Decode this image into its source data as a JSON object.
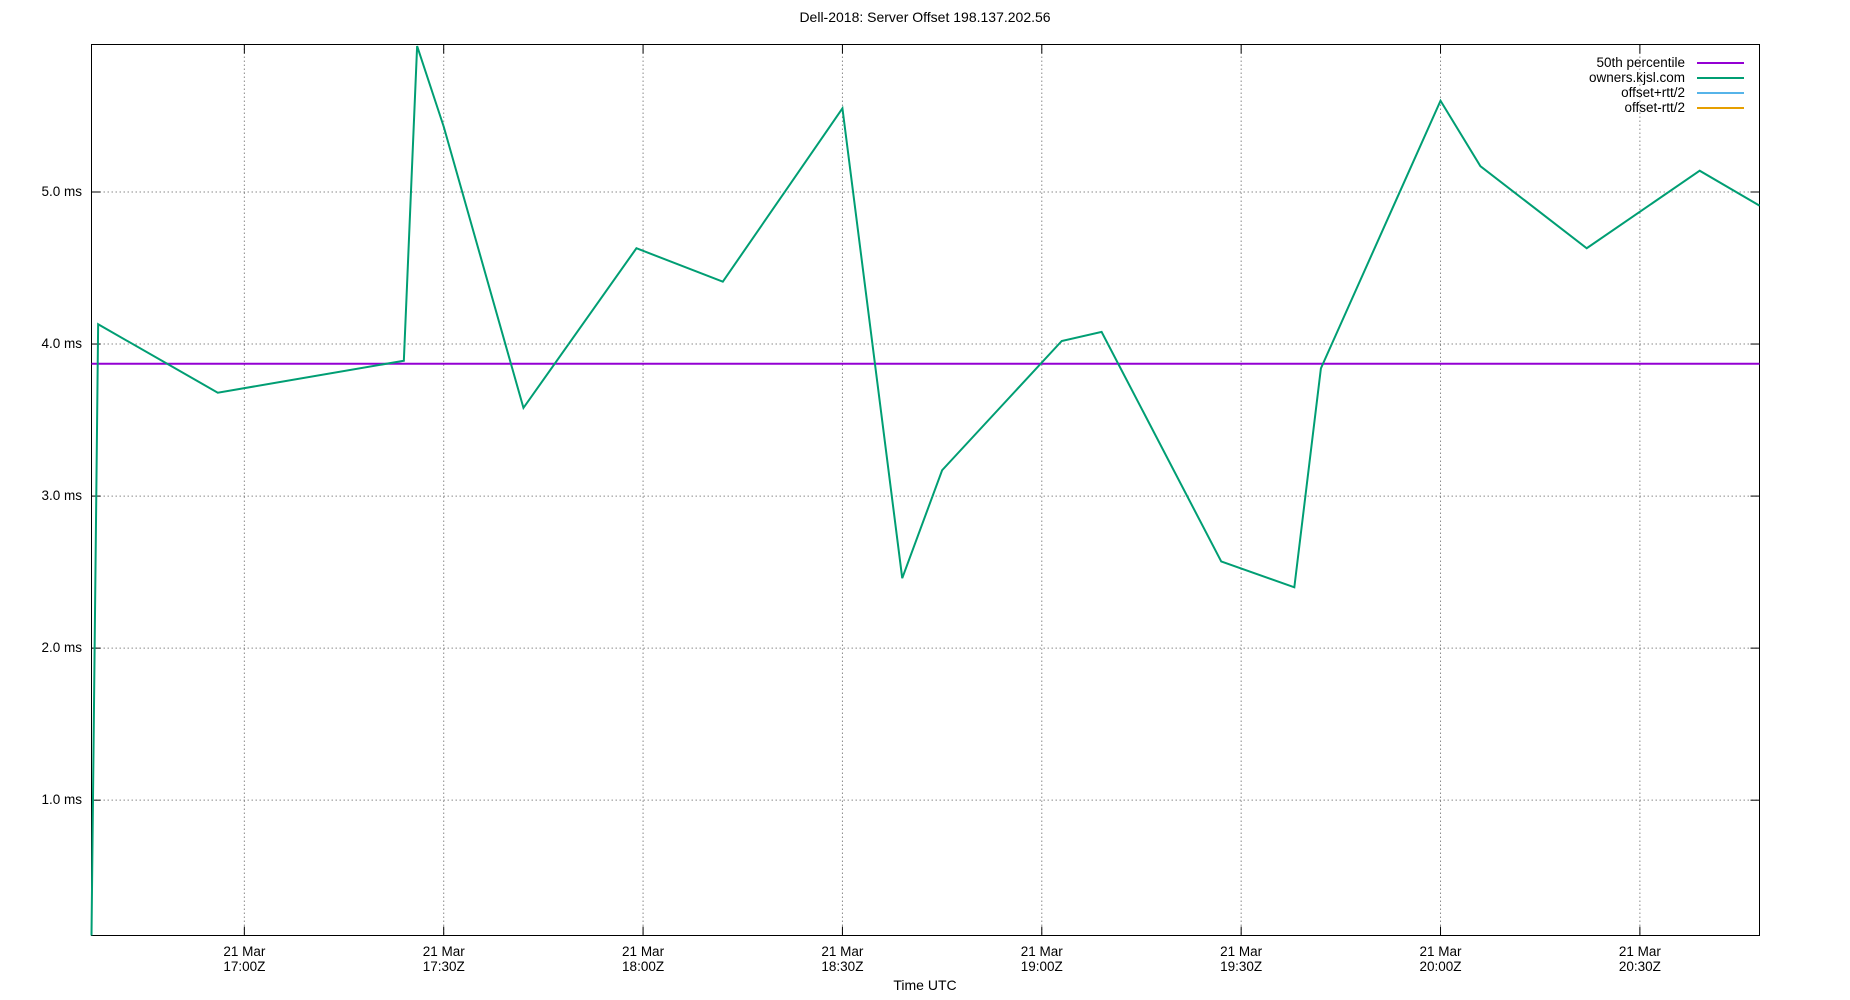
{
  "chart_data": {
    "type": "line",
    "title": "Dell-2018: Server Offset 198.137.202.56",
    "xlabel": "Time UTC",
    "y_unit": "ms",
    "ylim": [
      0.11,
      5.97
    ],
    "x_range": [
      "16:37",
      "20:48"
    ],
    "grid": true,
    "legend_position": "inside top right",
    "y_ticks": [
      {
        "v": 5.0,
        "label": "5.0 ms"
      },
      {
        "v": 4.0,
        "label": "4.0 ms"
      },
      {
        "v": 3.0,
        "label": "3.0 ms"
      },
      {
        "v": 2.0,
        "label": "2.0 ms"
      },
      {
        "v": 1.0,
        "label": "1.0 ms"
      }
    ],
    "x_ticks": [
      {
        "t": "17:00",
        "l1": "21 Mar",
        "l2": "17:00Z"
      },
      {
        "t": "17:30",
        "l1": "21 Mar",
        "l2": "17:30Z"
      },
      {
        "t": "18:00",
        "l1": "21 Mar",
        "l2": "18:00Z"
      },
      {
        "t": "18:30",
        "l1": "21 Mar",
        "l2": "18:30Z"
      },
      {
        "t": "19:00",
        "l1": "21 Mar",
        "l2": "19:00Z"
      },
      {
        "t": "19:30",
        "l1": "21 Mar",
        "l2": "19:30Z"
      },
      {
        "t": "20:00",
        "l1": "21 Mar",
        "l2": "20:00Z"
      },
      {
        "t": "20:30",
        "l1": "21 Mar",
        "l2": "20:30Z"
      }
    ],
    "series": [
      {
        "name": "50th percentile",
        "color": "#9400d3",
        "style": "hline",
        "value_ms": 3.87
      },
      {
        "name": "owners.kjsl.com",
        "color": "#009e73",
        "style": "line",
        "points": [
          [
            "16:37",
            0.11
          ],
          [
            "16:38",
            4.13
          ],
          [
            "16:56",
            3.68
          ],
          [
            "17:24",
            3.89
          ],
          [
            "17:26",
            5.96
          ],
          [
            "17:30",
            5.43
          ],
          [
            "17:42",
            3.58
          ],
          [
            "17:59",
            4.63
          ],
          [
            "18:12",
            4.41
          ],
          [
            "18:30",
            5.55
          ],
          [
            "18:39",
            2.46
          ],
          [
            "18:45",
            3.17
          ],
          [
            "19:03",
            4.02
          ],
          [
            "19:09",
            4.08
          ],
          [
            "19:27",
            2.57
          ],
          [
            "19:38",
            2.4
          ],
          [
            "19:42",
            3.84
          ],
          [
            "20:00",
            5.6
          ],
          [
            "20:06",
            5.17
          ],
          [
            "20:22",
            4.63
          ],
          [
            "20:39",
            5.14
          ],
          [
            "20:48",
            4.91
          ]
        ]
      },
      {
        "name": "offset+rtt/2",
        "color": "#56b4e9",
        "style": "line",
        "points": []
      },
      {
        "name": "offset-rtt/2",
        "color": "#e69f00",
        "style": "line",
        "points": []
      }
    ]
  }
}
